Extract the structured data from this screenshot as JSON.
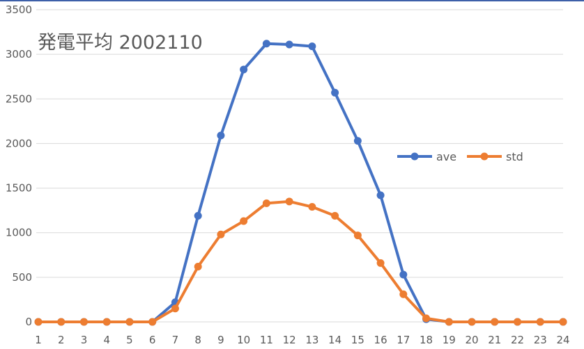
{
  "chart_data": {
    "type": "line",
    "title": "発電平均 2002110",
    "xlabel": "",
    "ylabel": "",
    "categories": [
      "1",
      "2",
      "3",
      "4",
      "5",
      "6",
      "7",
      "8",
      "9",
      "10",
      "11",
      "12",
      "13",
      "14",
      "15",
      "16",
      "17",
      "18",
      "19",
      "20",
      "21",
      "22",
      "23",
      "24"
    ],
    "ylim": [
      0,
      3500
    ],
    "yticks": [
      0,
      500,
      1000,
      1500,
      2000,
      2500,
      3000,
      3500
    ],
    "grid": true,
    "legend_position": "right",
    "series": [
      {
        "name": "ave",
        "color": "#4472c4",
        "values": [
          0,
          0,
          0,
          0,
          0,
          0,
          220,
          1190,
          2090,
          2830,
          3120,
          3110,
          3090,
          2570,
          2030,
          1420,
          530,
          30,
          0,
          0,
          0,
          0,
          0,
          0
        ]
      },
      {
        "name": "std",
        "color": "#ed7d31",
        "values": [
          0,
          0,
          0,
          0,
          0,
          0,
          150,
          620,
          980,
          1130,
          1330,
          1350,
          1290,
          1190,
          970,
          660,
          310,
          40,
          0,
          0,
          0,
          0,
          0,
          0
        ]
      }
    ],
    "gridline_color": "#d9d9d9",
    "text_color": "#595959"
  }
}
